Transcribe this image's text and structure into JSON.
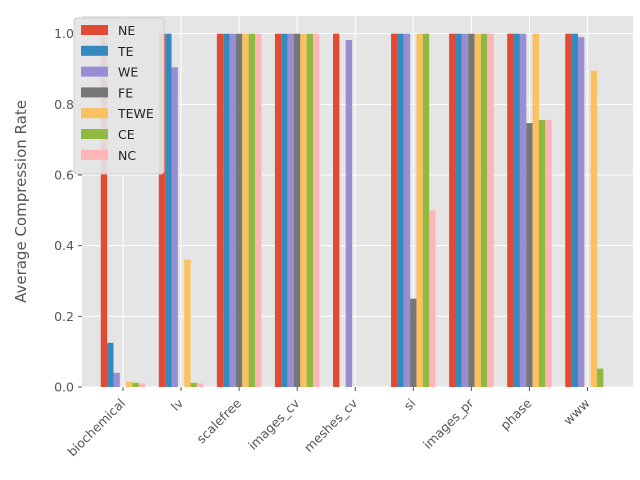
{
  "chart_data": {
    "type": "bar",
    "title": "",
    "xlabel": "",
    "ylabel": "Average Compression Rate",
    "ylim": [
      0,
      1.05
    ],
    "yticks": [
      "0.0",
      "0.2",
      "0.4",
      "0.6",
      "0.8",
      "1.0"
    ],
    "grid": true,
    "legend_position": "top-left",
    "categories": [
      "biochemical",
      "lv",
      "scalefree",
      "images_cv",
      "meshes_cv",
      "si",
      "images_pr",
      "phase",
      "www"
    ],
    "series": [
      {
        "name": "NE",
        "color": "#E24A33",
        "values": [
          0.99,
          1.0,
          1.0,
          1.0,
          1.0,
          1.0,
          1.0,
          1.0,
          1.0
        ]
      },
      {
        "name": "TE",
        "color": "#348ABD",
        "values": [
          0.125,
          1.0,
          1.0,
          1.0,
          0,
          1.0,
          1.0,
          1.0,
          1.0
        ]
      },
      {
        "name": "WE",
        "color": "#988ED5",
        "values": [
          0.04,
          0.905,
          1.0,
          1.0,
          0.982,
          1.0,
          1.0,
          1.0,
          0.99
        ]
      },
      {
        "name": "FE",
        "color": "#777777",
        "values": [
          0,
          0,
          1.0,
          1.0,
          0,
          0.25,
          1.0,
          0.747,
          0
        ]
      },
      {
        "name": "TEWE",
        "color": "#FBC15E",
        "values": [
          0.015,
          0.36,
          1.0,
          1.0,
          0,
          1.0,
          1.0,
          1.0,
          0.895
        ]
      },
      {
        "name": "CE",
        "color": "#8EBA42",
        "values": [
          0.012,
          0.012,
          1.0,
          1.0,
          0,
          1.0,
          1.0,
          0.756,
          0.052
        ]
      },
      {
        "name": "NC",
        "color": "#FFB5B8",
        "values": [
          0.01,
          0.01,
          1.0,
          1.0,
          0,
          0.5,
          1.0,
          0.756,
          0
        ]
      }
    ]
  }
}
